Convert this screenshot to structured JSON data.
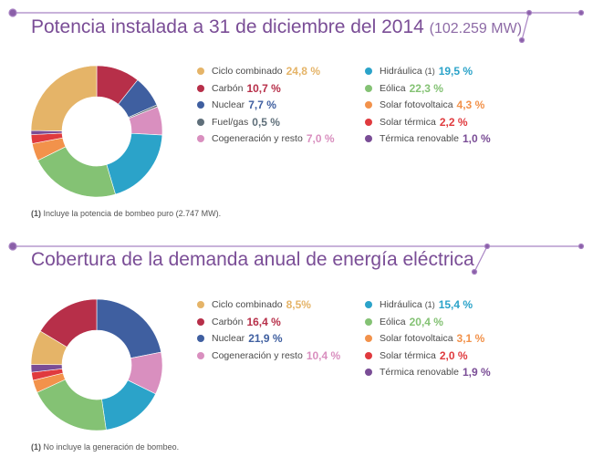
{
  "chart_data": [
    {
      "type": "pie",
      "title": "Potencia instalada a 31 de diciembre del 2014",
      "subtitle": "(102.259 MW)",
      "note_marker": "(1)",
      "note": "Incluye la potencia de bombeo puro (2.747 MW).",
      "legend_left": [
        {
          "label": "Ciclo combinado",
          "value": "24,8 %",
          "color": "#e5b468"
        },
        {
          "label": "Carbón",
          "value": "10,7 %",
          "color": "#b72f49"
        },
        {
          "label": "Nuclear",
          "value": "7,7 %",
          "color": "#3f5fa0"
        },
        {
          "label": "Fuel/gas",
          "value": "0,5 %",
          "color": "#5f6f7a"
        },
        {
          "label": "Cogeneración y resto",
          "value": "7,0 %",
          "color": "#d98fbf"
        }
      ],
      "legend_right": [
        {
          "label": "Hidráulica",
          "marker": "(1)",
          "value": "19,5 %",
          "color": "#2ba3c9"
        },
        {
          "label": "Eólica",
          "value": "22,3 %",
          "color": "#84c274"
        },
        {
          "label": "Solar fotovoltaica",
          "value": "4,3 %",
          "color": "#f2924b"
        },
        {
          "label": "Solar térmica",
          "value": "2,2 %",
          "color": "#e03a3e"
        },
        {
          "label": "Térmica renovable",
          "value": "1,0 %",
          "color": "#7a4d96"
        }
      ],
      "slices": [
        {
          "name": "Carbón",
          "value": 10.7,
          "color": "#b72f49"
        },
        {
          "name": "Nuclear",
          "value": 7.7,
          "color": "#3f5fa0"
        },
        {
          "name": "Fuel/gas",
          "value": 0.5,
          "color": "#5f6f7a"
        },
        {
          "name": "Cogeneración y resto",
          "value": 7.0,
          "color": "#d98fbf"
        },
        {
          "name": "Hidráulica",
          "value": 19.5,
          "color": "#2ba3c9"
        },
        {
          "name": "Eólica",
          "value": 22.3,
          "color": "#84c274"
        },
        {
          "name": "Solar fotovoltaica",
          "value": 4.3,
          "color": "#f2924b"
        },
        {
          "name": "Solar térmica",
          "value": 2.2,
          "color": "#e03a3e"
        },
        {
          "name": "Térmica renovable",
          "value": 1.0,
          "color": "#7a4d96"
        },
        {
          "name": "Ciclo combinado",
          "value": 24.8,
          "color": "#e5b468"
        }
      ]
    },
    {
      "type": "pie",
      "title": "Cobertura de la demanda anual de energía eléctrica",
      "note_marker": "(1)",
      "note": "No incluye la generación de bombeo.",
      "legend_left": [
        {
          "label": "Ciclo combinado",
          "value": "8,5%",
          "color": "#e5b468"
        },
        {
          "label": "Carbón",
          "value": "16,4 %",
          "color": "#b72f49"
        },
        {
          "label": "Nuclear",
          "value": "21,9 %",
          "color": "#3f5fa0"
        },
        {
          "label": "Cogeneración y resto",
          "value": "10,4 %",
          "color": "#d98fbf"
        }
      ],
      "legend_right": [
        {
          "label": "Hidráulica",
          "marker": "(1)",
          "value": "15,4 %",
          "color": "#2ba3c9"
        },
        {
          "label": "Eólica",
          "value": "20,4 %",
          "color": "#84c274"
        },
        {
          "label": "Solar fotovoltaica",
          "value": "3,1 %",
          "color": "#f2924b"
        },
        {
          "label": "Solar térmica",
          "value": "2,0 %",
          "color": "#e03a3e"
        },
        {
          "label": "Térmica renovable",
          "value": "1,9 %",
          "color": "#7a4d96"
        }
      ],
      "slices": [
        {
          "name": "Nuclear",
          "value": 21.9,
          "color": "#3f5fa0"
        },
        {
          "name": "Cogeneración y resto",
          "value": 10.4,
          "color": "#d98fbf"
        },
        {
          "name": "Hidráulica",
          "value": 15.4,
          "color": "#2ba3c9"
        },
        {
          "name": "Eólica",
          "value": 20.4,
          "color": "#84c274"
        },
        {
          "name": "Solar fotovoltaica",
          "value": 3.1,
          "color": "#f2924b"
        },
        {
          "name": "Solar térmica",
          "value": 2.0,
          "color": "#e03a3e"
        },
        {
          "name": "Térmica renovable",
          "value": 1.9,
          "color": "#7a4d96"
        },
        {
          "name": "Ciclo combinado",
          "value": 8.5,
          "color": "#e5b468"
        },
        {
          "name": "Carbón",
          "value": 16.4,
          "color": "#b72f49"
        }
      ]
    }
  ]
}
